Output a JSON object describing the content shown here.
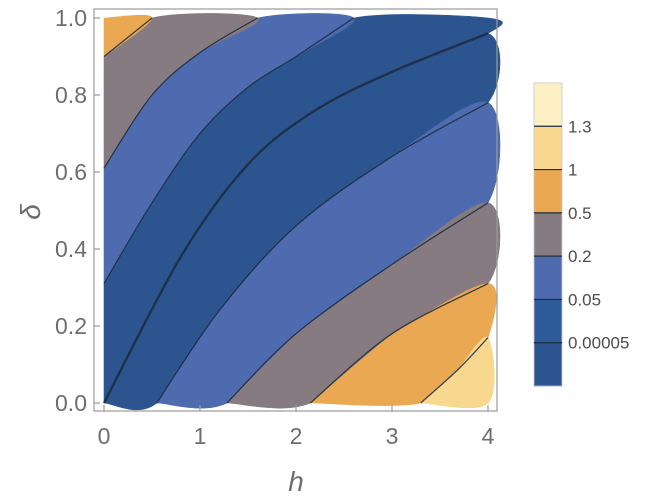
{
  "chart_data": {
    "type": "heatmap",
    "subtype": "filled-contour",
    "title": "",
    "xlabel": "h",
    "ylabel": "δ",
    "xlim": [
      0,
      4
    ],
    "ylim": [
      0,
      1
    ],
    "x_ticks": [
      "0",
      "1",
      "2",
      "3",
      "4"
    ],
    "y_ticks": [
      "0.0",
      "0.2",
      "0.4",
      "0.6",
      "0.8",
      "1.0"
    ],
    "grid": false,
    "legend_position": "right",
    "legend": {
      "thresholds": [
        "0.00005",
        "0.05",
        "0.2",
        "0.5",
        "1",
        "1.3"
      ],
      "colors": [
        "#2c5590",
        "#2d5b98",
        "#4e6baf",
        "#857b80",
        "#e9a851",
        "#f8d78e",
        "#fdf0c4"
      ]
    },
    "contour_levels": [
      {
        "label": "0.00005",
        "path": [
          [
            0,
            0
          ],
          [
            0.8,
            0.38
          ],
          [
            1.5,
            0.62
          ],
          [
            2.2,
            0.76
          ],
          [
            3,
            0.86
          ],
          [
            4,
            0.96
          ]
        ]
      },
      {
        "label": "0.05",
        "path": [
          [
            0,
            0.31
          ],
          [
            0.5,
            0.52
          ],
          [
            1,
            0.7
          ],
          [
            1.5,
            0.82
          ],
          [
            2,
            0.9
          ],
          [
            2.6,
            1
          ]
        ]
      },
      {
        "label": "0.05",
        "path": [
          [
            0.55,
            0
          ],
          [
            1.2,
            0.24
          ],
          [
            2,
            0.46
          ],
          [
            3,
            0.64
          ],
          [
            4,
            0.78
          ]
        ]
      },
      {
        "label": "0.2",
        "path": [
          [
            0,
            0.61
          ],
          [
            0.5,
            0.8
          ],
          [
            1,
            0.91
          ],
          [
            1.6,
            1
          ]
        ]
      },
      {
        "label": "0.2",
        "path": [
          [
            1.28,
            0
          ],
          [
            2,
            0.18
          ],
          [
            3,
            0.36
          ],
          [
            4,
            0.52
          ]
        ]
      },
      {
        "label": "0.5",
        "path": [
          [
            0,
            0.9
          ],
          [
            0.5,
            1
          ]
        ]
      },
      {
        "label": "0.5",
        "path": [
          [
            2.15,
            0
          ],
          [
            3,
            0.18
          ],
          [
            4,
            0.31
          ]
        ]
      },
      {
        "label": "1",
        "path": [
          [
            3.3,
            0
          ],
          [
            3.7,
            0.09
          ],
          [
            4,
            0.17
          ]
        ]
      }
    ],
    "regions": [
      {
        "label": "0.00005",
        "color": "#2c5590",
        "polygon": [
          [
            0,
            0
          ],
          [
            0.8,
            0.38
          ],
          [
            1.5,
            0.62
          ],
          [
            2.2,
            0.76
          ],
          [
            3,
            0.86
          ],
          [
            4,
            0.96
          ],
          [
            4,
            1
          ],
          [
            2.6,
            1
          ],
          [
            2,
            0.9
          ],
          [
            1.5,
            0.82
          ],
          [
            1,
            0.7
          ],
          [
            0.5,
            0.52
          ],
          [
            0,
            0.31
          ]
        ]
      },
      {
        "label": "0.00005",
        "color": "#2c5590",
        "polygon": [
          [
            0,
            0
          ],
          [
            0.55,
            0
          ],
          [
            1.2,
            0.24
          ],
          [
            2,
            0.46
          ],
          [
            3,
            0.64
          ],
          [
            4,
            0.78
          ],
          [
            4,
            0.96
          ],
          [
            3,
            0.86
          ],
          [
            2.2,
            0.76
          ],
          [
            1.5,
            0.62
          ],
          [
            0.8,
            0.38
          ]
        ]
      },
      {
        "label": "0.05",
        "color": "#4e6baf",
        "polygon": [
          [
            0,
            0.31
          ],
          [
            0.5,
            0.52
          ],
          [
            1,
            0.7
          ],
          [
            1.5,
            0.82
          ],
          [
            2,
            0.9
          ],
          [
            2.6,
            1
          ],
          [
            1.6,
            1
          ],
          [
            1,
            0.91
          ],
          [
            0.5,
            0.8
          ],
          [
            0,
            0.61
          ]
        ]
      },
      {
        "label": "0.05",
        "color": "#4e6baf",
        "polygon": [
          [
            0.55,
            0
          ],
          [
            1.28,
            0
          ],
          [
            2,
            0.18
          ],
          [
            3,
            0.36
          ],
          [
            4,
            0.52
          ],
          [
            4,
            0.78
          ],
          [
            3,
            0.64
          ],
          [
            2,
            0.46
          ],
          [
            1.2,
            0.24
          ]
        ]
      },
      {
        "label": "0.2",
        "color": "#857b80",
        "polygon": [
          [
            0,
            0.61
          ],
          [
            0.5,
            0.8
          ],
          [
            1,
            0.91
          ],
          [
            1.6,
            1
          ],
          [
            0.5,
            1
          ],
          [
            0,
            0.9
          ]
        ]
      },
      {
        "label": "0.2",
        "color": "#857b80",
        "polygon": [
          [
            1.28,
            0
          ],
          [
            2.15,
            0
          ],
          [
            3,
            0.18
          ],
          [
            4,
            0.31
          ],
          [
            4,
            0.52
          ],
          [
            3,
            0.36
          ],
          [
            2,
            0.18
          ]
        ]
      },
      {
        "label": "0.5",
        "color": "#e9a851",
        "polygon": [
          [
            0,
            0.9
          ],
          [
            0.5,
            1
          ],
          [
            0,
            1
          ]
        ]
      },
      {
        "label": "0.5",
        "color": "#e9a851",
        "polygon": [
          [
            2.15,
            0
          ],
          [
            3.3,
            0
          ],
          [
            3.7,
            0.09
          ],
          [
            4,
            0.17
          ],
          [
            4,
            0.31
          ],
          [
            3,
            0.18
          ]
        ]
      },
      {
        "label": "1",
        "color": "#f8d78e",
        "polygon": [
          [
            3.3,
            0
          ],
          [
            4,
            0
          ],
          [
            4,
            0.17
          ],
          [
            3.7,
            0.09
          ]
        ]
      }
    ]
  }
}
